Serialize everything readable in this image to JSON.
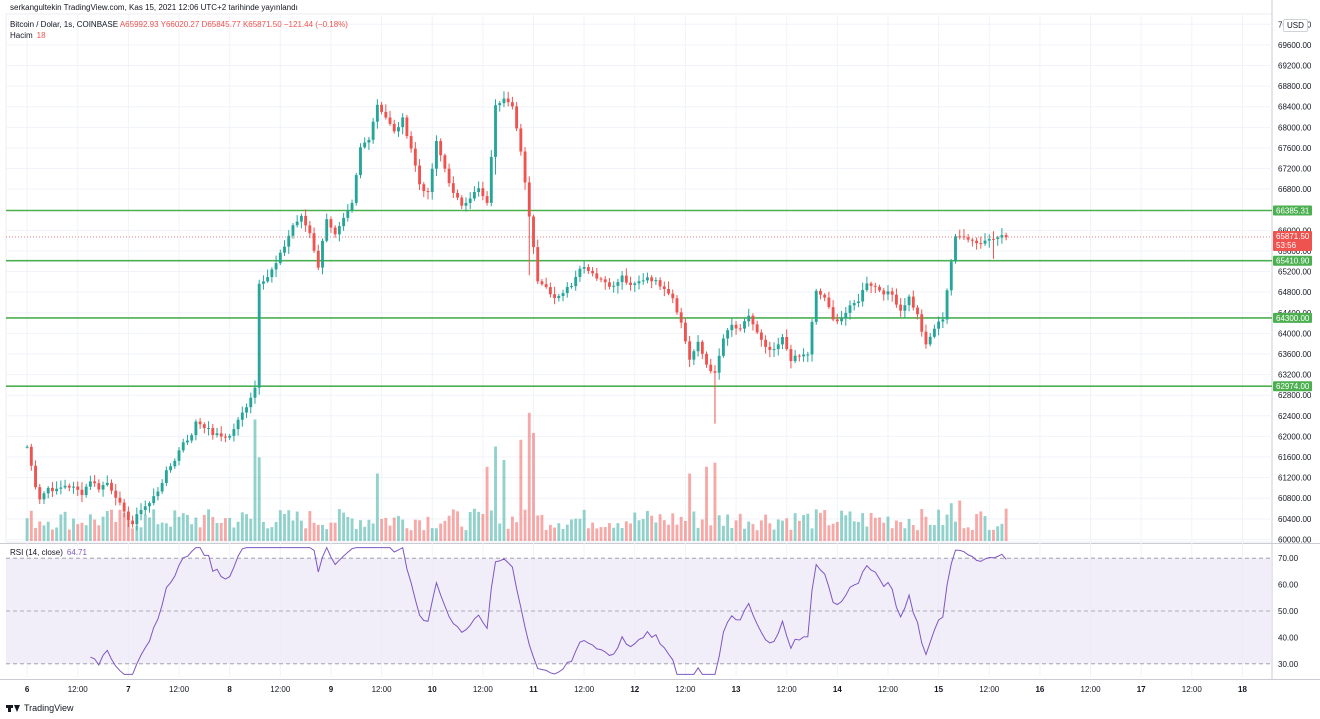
{
  "header": {
    "published_line": "serkangultekin TradingView.com, Kas 15, 2021 12:06 UTC+2 tarihinde yayınlandı",
    "symbol": "Bitcoin / Dolar, 1s, COINBASE",
    "open": "A65992.93",
    "high": "Y66020.27",
    "low": "D65845.77",
    "close": "K65871.50",
    "change": "−121.44 (−0.18%)"
  },
  "volume_legend": {
    "label": "Hacim",
    "value": "18"
  },
  "rsi_legend": {
    "label": "RSI (14, close)",
    "value": "64.71"
  },
  "currency_button": "USD",
  "footer": {
    "brand": "TradingView"
  },
  "colors": {
    "up": "#26a69a",
    "down": "#ef5350",
    "level_line": "#4caf50",
    "rsi_line": "#7e57c2",
    "rsi_band": "#ede7f6",
    "grid": "#f0f3fa"
  },
  "chart_data": {
    "type": "candlestick",
    "title": "Bitcoin / Dolar, 1s, COINBASE",
    "x_tick_labels": [
      "6",
      "12:00",
      "7",
      "12:00",
      "8",
      "12:00",
      "9",
      "12:00",
      "10",
      "12:00",
      "11",
      "12:00",
      "12",
      "12:00",
      "13",
      "12:00",
      "14",
      "12:00",
      "15",
      "12:00",
      "16",
      "12:00",
      "17",
      "12:00",
      "18"
    ],
    "x_tick_positions_hours": [
      0,
      12,
      24,
      36,
      48,
      60,
      72,
      84,
      96,
      108,
      120,
      132,
      144,
      156,
      168,
      180,
      192,
      204,
      216,
      228,
      240,
      252,
      264,
      276,
      288
    ],
    "x_range_hours": [
      -5,
      295
    ],
    "y_tick_labels": [
      "60000.00",
      "60400.00",
      "60800.00",
      "61200.00",
      "61600.00",
      "62000.00",
      "62400.00",
      "62800.00",
      "63200.00",
      "63600.00",
      "64000.00",
      "64400.00",
      "64800.00",
      "65200.00",
      "65600.00",
      "66000.00",
      "66800.00",
      "67200.00",
      "67600.00",
      "68000.00",
      "68400.00",
      "68800.00",
      "69200.00",
      "69600.00",
      "70000.00"
    ],
    "ylim": [
      59950,
      70200
    ],
    "price_levels": [
      {
        "label": "66385.31",
        "value": 66385.31
      },
      {
        "label": "65410.90",
        "value": 65410.9
      },
      {
        "label": "64300.00",
        "value": 64300.0
      },
      {
        "label": "62974.00",
        "value": 62974.0
      }
    ],
    "last_price": {
      "label": "65871.50",
      "countdown": "53:56",
      "value": 65871.5
    },
    "rsi_ticks": [
      "70.00",
      "60.00",
      "50.00",
      "40.00",
      "30.00"
    ],
    "rsi_levels": {
      "upper": 70,
      "middle": 50,
      "lower": 30
    },
    "rsi_last": 64.71,
    "close_anchors": [
      [
        0,
        61800
      ],
      [
        2,
        61050
      ],
      [
        3,
        60800
      ],
      [
        5,
        61000
      ],
      [
        7,
        60950
      ],
      [
        9,
        61050
      ],
      [
        11,
        61000
      ],
      [
        13,
        60900
      ],
      [
        15,
        61150
      ],
      [
        17,
        61000
      ],
      [
        19,
        61100
      ],
      [
        21,
        60850
      ],
      [
        23,
        60500
      ],
      [
        25,
        60300
      ],
      [
        27,
        60600
      ],
      [
        29,
        60700
      ],
      [
        31,
        60950
      ],
      [
        33,
        61300
      ],
      [
        35,
        61550
      ],
      [
        37,
        61900
      ],
      [
        39,
        62000
      ],
      [
        40,
        62300
      ],
      [
        42,
        62200
      ],
      [
        44,
        62050
      ],
      [
        46,
        62000
      ],
      [
        48,
        62000
      ],
      [
        50,
        62300
      ],
      [
        52,
        62600
      ],
      [
        54,
        62950
      ],
      [
        55,
        65000
      ],
      [
        57,
        65100
      ],
      [
        59,
        65350
      ],
      [
        61,
        65700
      ],
      [
        63,
        66100
      ],
      [
        65,
        66250
      ],
      [
        67,
        65950
      ],
      [
        69,
        65300
      ],
      [
        71,
        66250
      ],
      [
        73,
        65900
      ],
      [
        75,
        66200
      ],
      [
        77,
        66500
      ],
      [
        79,
        67600
      ],
      [
        81,
        67800
      ],
      [
        83,
        68450
      ],
      [
        85,
        68200
      ],
      [
        87,
        67900
      ],
      [
        89,
        68150
      ],
      [
        91,
        67600
      ],
      [
        93,
        66900
      ],
      [
        95,
        66700
      ],
      [
        97,
        67700
      ],
      [
        99,
        67200
      ],
      [
        101,
        66700
      ],
      [
        103,
        66500
      ],
      [
        105,
        66650
      ],
      [
        107,
        66800
      ],
      [
        109,
        66500
      ],
      [
        111,
        68400
      ],
      [
        113,
        68600
      ],
      [
        115,
        68450
      ],
      [
        117,
        67500
      ],
      [
        119,
        66300
      ],
      [
        121,
        65050
      ],
      [
        123,
        64900
      ],
      [
        125,
        64700
      ],
      [
        127,
        64800
      ],
      [
        129,
        64950
      ],
      [
        131,
        65300
      ],
      [
        133,
        65250
      ],
      [
        135,
        65100
      ],
      [
        137,
        65000
      ],
      [
        139,
        64900
      ],
      [
        141,
        65100
      ],
      [
        143,
        64900
      ],
      [
        145,
        65000
      ],
      [
        147,
        65100
      ],
      [
        149,
        65000
      ],
      [
        151,
        64900
      ],
      [
        153,
        64700
      ],
      [
        155,
        64200
      ],
      [
        157,
        63500
      ],
      [
        159,
        63800
      ],
      [
        161,
        63400
      ],
      [
        163,
        63200
      ],
      [
        165,
        63900
      ],
      [
        167,
        64150
      ],
      [
        169,
        64050
      ],
      [
        171,
        64350
      ],
      [
        173,
        64000
      ],
      [
        175,
        63700
      ],
      [
        177,
        63650
      ],
      [
        179,
        63900
      ],
      [
        181,
        63500
      ],
      [
        183,
        63550
      ],
      [
        185,
        63600
      ],
      [
        187,
        64800
      ],
      [
        189,
        64700
      ],
      [
        191,
        64250
      ],
      [
        193,
        64300
      ],
      [
        195,
        64500
      ],
      [
        197,
        64650
      ],
      [
        199,
        65000
      ],
      [
        201,
        64900
      ],
      [
        203,
        64800
      ],
      [
        205,
        64750
      ],
      [
        207,
        64450
      ],
      [
        209,
        64700
      ],
      [
        211,
        64350
      ],
      [
        213,
        63750
      ],
      [
        215,
        64100
      ],
      [
        217,
        64300
      ],
      [
        219,
        65400
      ],
      [
        220,
        65850
      ],
      [
        222,
        65900
      ],
      [
        224,
        65800
      ],
      [
        226,
        65750
      ],
      [
        228,
        65850
      ],
      [
        230,
        65900
      ],
      [
        232,
        65870
      ]
    ],
    "volume_note": "Hacim (volume) histogram in lower part of price pane"
  }
}
